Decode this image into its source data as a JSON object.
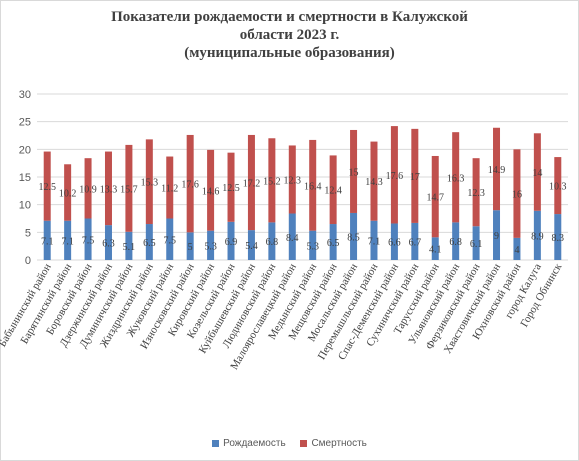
{
  "chart_data": {
    "type": "bar",
    "stacked": true,
    "title_lines": [
      "Показатели  рождаемости и смертности  в Калужской",
      "области  2023 г.",
      "(муниципальные  образования)"
    ],
    "ylim": [
      0,
      30
    ],
    "yticks": [
      "0",
      "5",
      "10",
      "15",
      "20",
      "25",
      "30"
    ],
    "grid": true,
    "legend_position": "bottom",
    "categories": [
      "Бабынинский район",
      "Барятинский район",
      "Боровский район",
      "Дзержинский район",
      "Думиничский район",
      "Жиздринский район",
      "Жуковский район",
      "Износковский район",
      "Кировский район",
      "Козельский район",
      "Куйбышевский район",
      "Людиновский район",
      "Малоярославецкий район",
      "Медынский район",
      "Мещовский район",
      "Мосальский район",
      "Перемышльский район",
      "Спас-Деменский район",
      "Сухиничский район",
      "Тарусский район",
      "Ульяновский район",
      "Ферзиковский район",
      "Хвастовичский район",
      "Юхновский район",
      "город Калуга",
      "Город Обнинск"
    ],
    "series": [
      {
        "name": "Рождаемость",
        "color": "#4f81bd",
        "values": [
          7.1,
          7.1,
          7.5,
          6.3,
          5.1,
          6.5,
          7.5,
          5.0,
          5.3,
          6.9,
          5.4,
          6.8,
          8.4,
          5.3,
          6.5,
          8.5,
          7.1,
          6.6,
          6.7,
          4.1,
          6.8,
          6.1,
          9.0,
          4.0,
          8.9,
          8.3
        ],
        "labels": [
          "7.1",
          "7.1",
          "7.5",
          "6.3",
          "5.1",
          "6.5",
          "7.5",
          "5",
          "5.3",
          "6.9",
          "5.4",
          "6.8",
          "8.4",
          "5.3",
          "6.5",
          "8.5",
          "7.1",
          "6.6",
          "6.7",
          "4.1",
          "6.8",
          "6.1",
          "9",
          "4",
          "8.9",
          "8.3"
        ]
      },
      {
        "name": "Смертность",
        "color": "#c0504d",
        "values": [
          12.5,
          10.2,
          10.9,
          13.3,
          15.7,
          15.3,
          11.2,
          17.6,
          14.6,
          12.5,
          17.2,
          15.2,
          12.3,
          16.4,
          12.4,
          15.0,
          14.3,
          17.6,
          17.0,
          14.7,
          16.3,
          12.3,
          14.9,
          16.0,
          14.0,
          10.3
        ],
        "labels": [
          "12.5",
          "10.2",
          "10.9",
          "13.3",
          "15.7",
          "15.3",
          "11.2",
          "17.6",
          "14.6",
          "12.5",
          "17.2",
          "15.2",
          "12.3",
          "16.4",
          "12.4",
          "15",
          "14.3",
          "17.6",
          "17",
          "14.7",
          "16.3",
          "12.3",
          "14.9",
          "16",
          "14",
          "10.3"
        ]
      }
    ]
  }
}
